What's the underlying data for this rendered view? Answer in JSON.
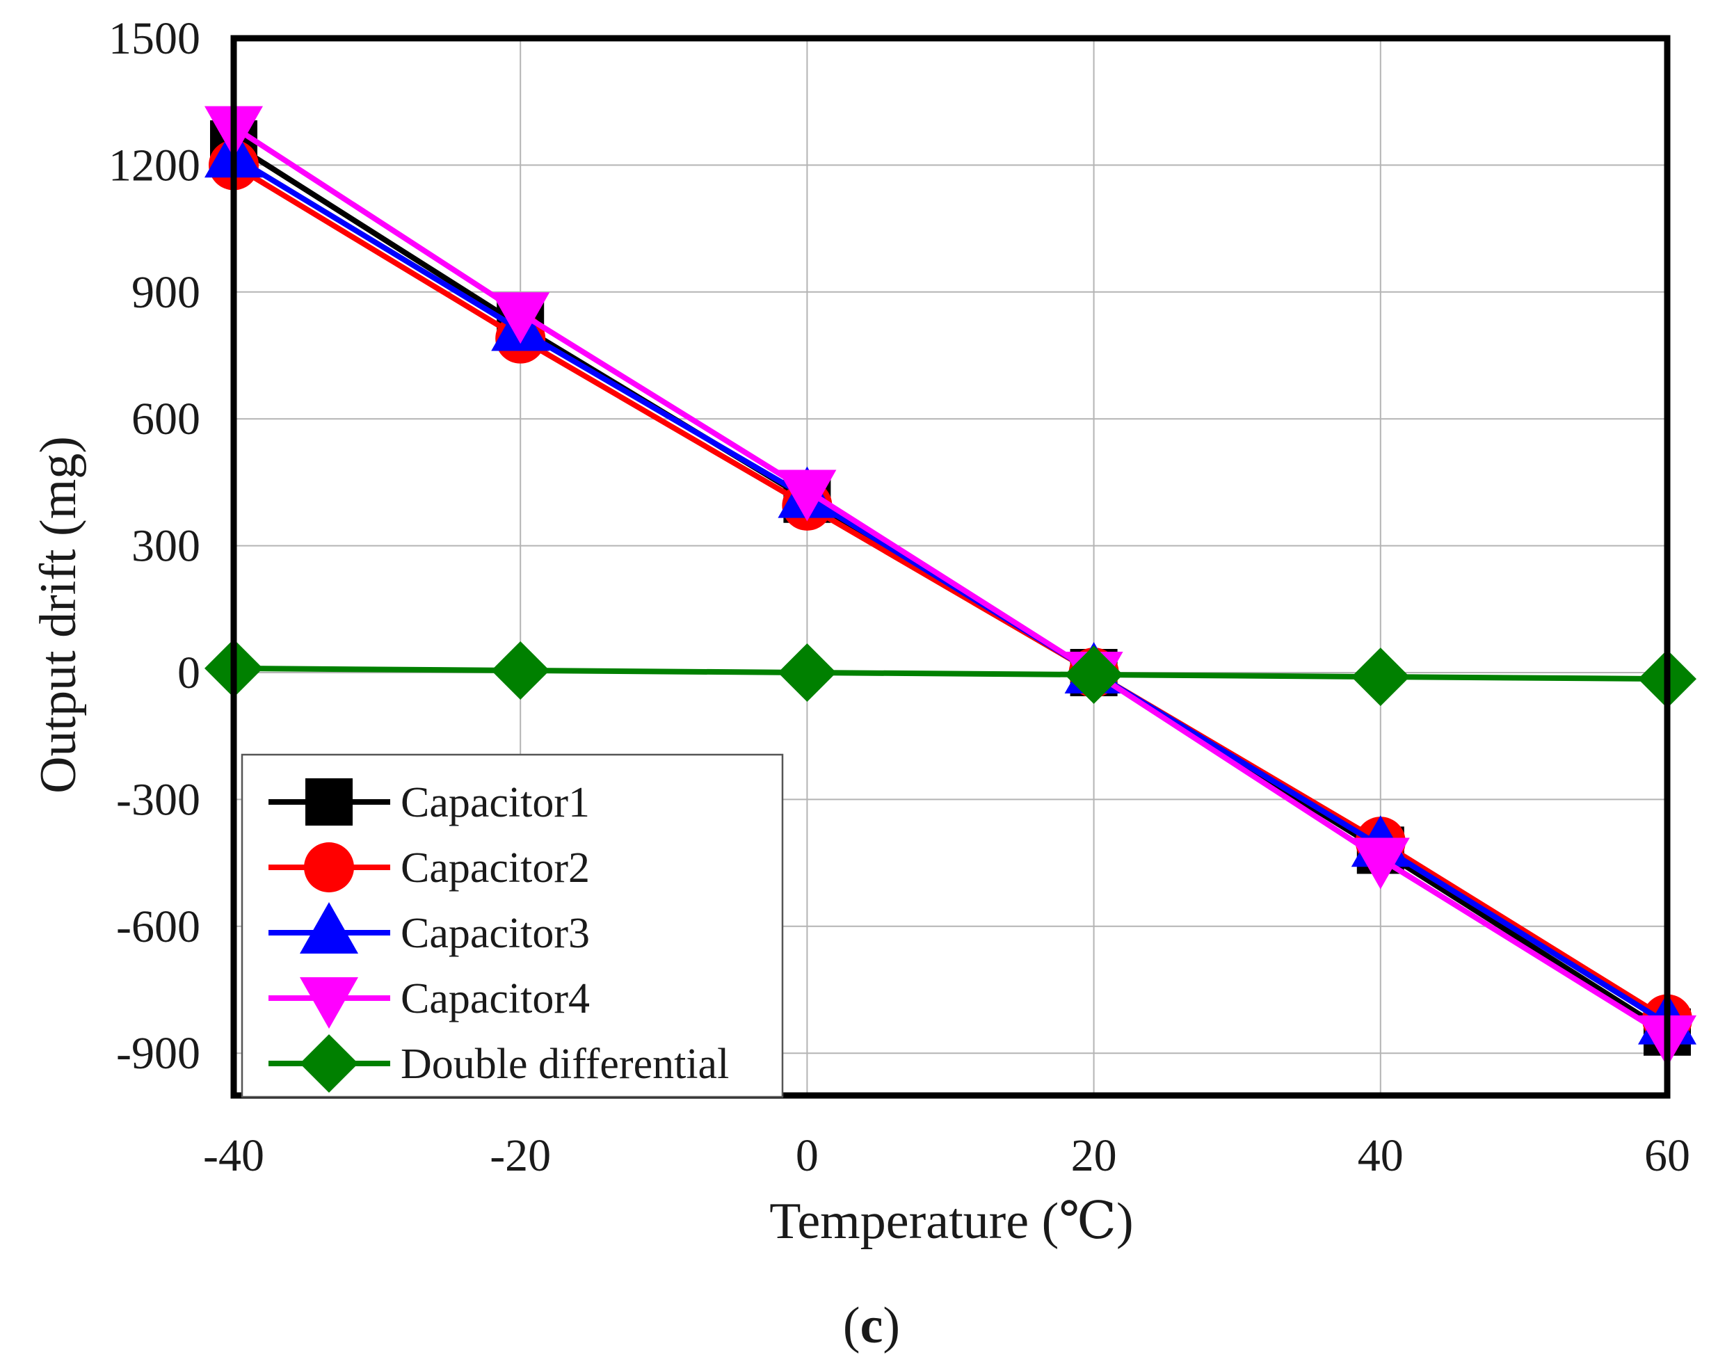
{
  "chart_data": {
    "type": "line",
    "title": "",
    "caption_open": "(",
    "caption_letter": "c",
    "caption_close": ")",
    "xlabel": "Temperature (℃)",
    "ylabel": "Output drift (mg)",
    "x": [
      -40,
      -20,
      0,
      20,
      40,
      60
    ],
    "x_tick_labels": [
      "-40",
      "-20",
      "0",
      "20",
      "40",
      "60"
    ],
    "xlim": [
      -40,
      60
    ],
    "ylim": [
      -1000,
      1500
    ],
    "y_ticks": [
      1500,
      1200,
      900,
      600,
      300,
      0,
      -300,
      -600,
      -900
    ],
    "y_tick_labels": [
      "1500",
      "1200",
      "900",
      "600",
      "300",
      "0",
      "-300",
      "-600",
      "-900"
    ],
    "grid": true,
    "legend_position": "bottom-left",
    "series": [
      {
        "name": "Capacitor1",
        "values": [
          1250,
          820,
          410,
          0,
          -420,
          -850
        ],
        "color": "#000000",
        "marker": "square"
      },
      {
        "name": "Capacitor2",
        "values": [
          1200,
          790,
          395,
          0,
          -400,
          -820
        ],
        "color": "#ff0000",
        "marker": "circle"
      },
      {
        "name": "Capacitor3",
        "values": [
          1220,
          810,
          415,
          0,
          -410,
          -830
        ],
        "color": "#0000ff",
        "marker": "triangle-up"
      },
      {
        "name": "Capacitor4",
        "values": [
          1290,
          850,
          430,
          0,
          -440,
          -860
        ],
        "color": "#ff00ff",
        "marker": "triangle-down"
      },
      {
        "name": "Double differential",
        "values": [
          10,
          5,
          0,
          -5,
          -10,
          -15
        ],
        "color": "#008000",
        "marker": "diamond"
      }
    ]
  }
}
